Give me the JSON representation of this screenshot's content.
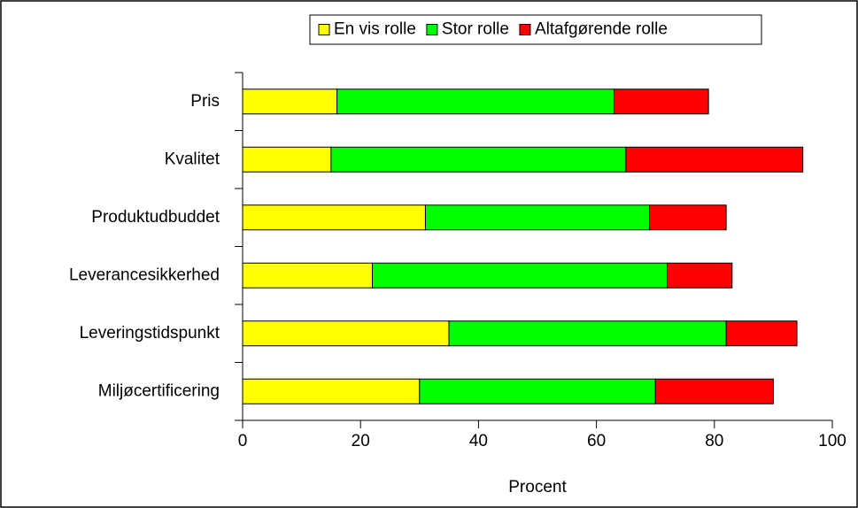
{
  "chart_data": {
    "type": "stacked_barh",
    "categories": [
      "Pris",
      "Kvalitet",
      "Produktudbuddet",
      "Leverancesikkerhed",
      "Leveringstidspunkt",
      "Miljøcertificering"
    ],
    "series": [
      {
        "name": "En vis rolle",
        "color": "#ffff00",
        "values": [
          16,
          15,
          31,
          22,
          35,
          30
        ]
      },
      {
        "name": "Stor rolle",
        "color": "#00ff00",
        "values": [
          47,
          50,
          38,
          50,
          47,
          40
        ]
      },
      {
        "name": "Altafgørende rolle",
        "color": "#ff0000",
        "values": [
          16,
          30,
          13,
          11,
          12,
          20
        ]
      }
    ],
    "xlabel": "Procent",
    "xlim": [
      0,
      100
    ],
    "xticks": [
      0,
      20,
      40,
      60,
      80,
      100
    ],
    "grid": false,
    "legend": "top"
  }
}
